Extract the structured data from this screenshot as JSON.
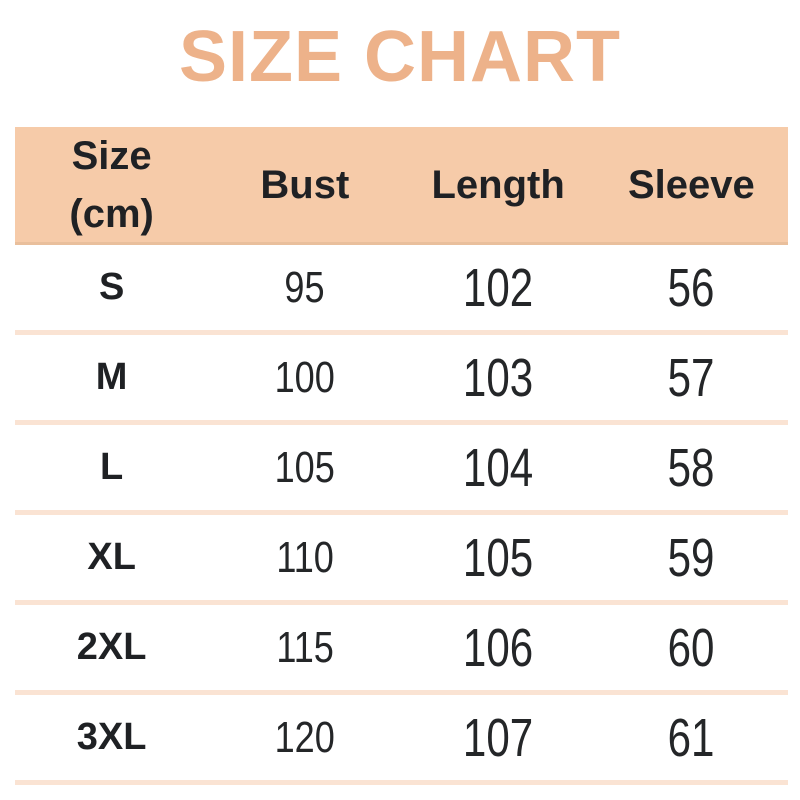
{
  "title": "SIZE CHART",
  "colors": {
    "title_text": "#edb28a",
    "header_background": "#f6cba9",
    "header_bottom_edge": "#e9bf9c",
    "row_divider": "#fae3d3",
    "body_text": "#242628",
    "header_text": "#1f2124",
    "page_background": "#ffffff"
  },
  "table": {
    "headers": {
      "size_line1": "Size",
      "size_line2": "(cm)",
      "bust": "Bust",
      "length": "Length",
      "sleeve": "Sleeve"
    },
    "rows": [
      {
        "size": "S",
        "bust": "95",
        "length": "102",
        "sleeve": "56"
      },
      {
        "size": "M",
        "bust": "100",
        "length": "103",
        "sleeve": "57"
      },
      {
        "size": "L",
        "bust": "105",
        "length": "104",
        "sleeve": "58"
      },
      {
        "size": "XL",
        "bust": "110",
        "length": "105",
        "sleeve": "59"
      },
      {
        "size": "2XL",
        "bust": "115",
        "length": "106",
        "sleeve": "60"
      },
      {
        "size": "3XL",
        "bust": "120",
        "length": "107",
        "sleeve": "61"
      }
    ]
  },
  "chart_data": {
    "type": "table",
    "title": "SIZE CHART",
    "unit": "cm",
    "columns": [
      "Size (cm)",
      "Bust",
      "Length",
      "Sleeve"
    ],
    "rows": [
      [
        "S",
        95,
        102,
        56
      ],
      [
        "M",
        100,
        103,
        57
      ],
      [
        "L",
        105,
        104,
        58
      ],
      [
        "XL",
        110,
        105,
        59
      ],
      [
        "2XL",
        115,
        106,
        60
      ],
      [
        "3XL",
        120,
        107,
        61
      ]
    ]
  }
}
